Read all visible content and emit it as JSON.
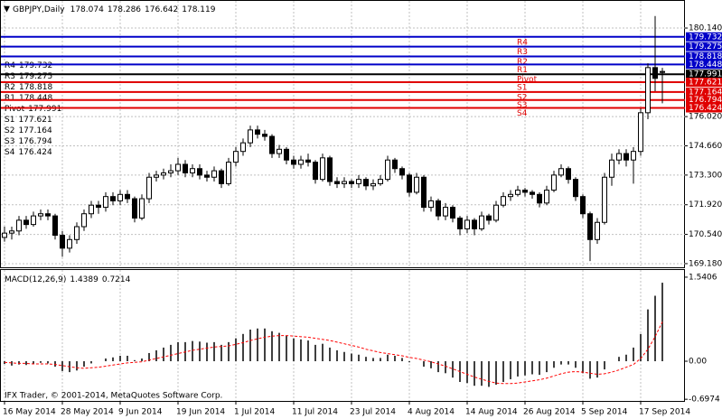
{
  "chart_data": [
    {
      "type": "candlestick",
      "title": "GBPJPY,Daily",
      "last_ohlc": [
        178.074,
        178.286,
        176.642,
        178.119
      ],
      "categories": [
        "16 May 2014",
        null,
        null,
        null,
        null,
        null,
        null,
        null,
        "28 May 2014",
        null,
        null,
        null,
        null,
        null,
        null,
        null,
        "9 Jun 2014",
        null,
        null,
        null,
        null,
        null,
        null,
        null,
        "19 Jun 2014",
        null,
        null,
        null,
        null,
        null,
        null,
        null,
        "1 Jul 2014",
        null,
        null,
        null,
        null,
        null,
        null,
        null,
        "11 Jul 2014",
        null,
        null,
        null,
        null,
        null,
        null,
        null,
        "23 Jul 2014",
        null,
        null,
        null,
        null,
        null,
        null,
        null,
        "4 Aug 2014",
        null,
        null,
        null,
        null,
        null,
        null,
        null,
        "14 Aug 2014",
        null,
        null,
        null,
        null,
        null,
        null,
        null,
        "26 Aug 2014",
        null,
        null,
        null,
        null,
        null,
        null,
        null,
        "5 Sep 2014",
        null,
        null,
        null,
        null,
        null,
        null,
        null,
        "17 Sep 2014",
        null,
        null,
        null
      ],
      "candles": [
        [
          170.4,
          170.9,
          170.2,
          170.6
        ],
        [
          170.6,
          170.9,
          170.3,
          170.7
        ],
        [
          170.7,
          171.4,
          170.5,
          171.2
        ],
        [
          171.2,
          171.4,
          170.8,
          171.0
        ],
        [
          171.0,
          171.6,
          170.9,
          171.4
        ],
        [
          171.4,
          171.7,
          171.2,
          171.5
        ],
        [
          171.5,
          171.7,
          171.2,
          171.4
        ],
        [
          171.4,
          171.5,
          170.3,
          170.5
        ],
        [
          170.5,
          170.7,
          169.5,
          169.9
        ],
        [
          169.9,
          170.5,
          169.7,
          170.3
        ],
        [
          170.3,
          171.1,
          170.1,
          170.9
        ],
        [
          170.9,
          171.7,
          170.7,
          171.5
        ],
        [
          171.5,
          172.1,
          171.3,
          171.9
        ],
        [
          171.9,
          172.1,
          171.5,
          171.8
        ],
        [
          171.8,
          172.5,
          171.6,
          172.3
        ],
        [
          172.3,
          172.5,
          171.9,
          172.1
        ],
        [
          172.1,
          172.6,
          171.9,
          172.4
        ],
        [
          172.4,
          172.6,
          172.0,
          172.2
        ],
        [
          172.2,
          172.3,
          171.1,
          171.3
        ],
        [
          171.3,
          172.4,
          171.2,
          172.2
        ],
        [
          172.2,
          173.4,
          172.0,
          173.2
        ],
        [
          173.2,
          173.5,
          173.0,
          173.3
        ],
        [
          173.3,
          173.6,
          173.1,
          173.4
        ],
        [
          173.4,
          173.8,
          173.2,
          173.5
        ],
        [
          173.5,
          174.1,
          173.3,
          173.8
        ],
        [
          173.8,
          174.0,
          173.2,
          173.4
        ],
        [
          173.4,
          173.8,
          173.2,
          173.6
        ],
        [
          173.6,
          173.8,
          173.1,
          173.3
        ],
        [
          173.3,
          173.5,
          173.0,
          173.2
        ],
        [
          173.2,
          173.7,
          173.0,
          173.5
        ],
        [
          173.5,
          173.6,
          172.7,
          172.9
        ],
        [
          172.9,
          174.1,
          172.8,
          173.9
        ],
        [
          173.9,
          174.6,
          173.7,
          174.4
        ],
        [
          174.4,
          175.0,
          174.2,
          174.8
        ],
        [
          174.8,
          175.6,
          174.6,
          175.4
        ],
        [
          175.4,
          175.6,
          175.0,
          175.2
        ],
        [
          175.2,
          175.4,
          174.9,
          175.1
        ],
        [
          175.1,
          175.2,
          174.1,
          174.3
        ],
        [
          174.3,
          174.7,
          174.1,
          174.5
        ],
        [
          174.5,
          174.6,
          173.8,
          174.0
        ],
        [
          174.0,
          174.2,
          173.6,
          173.8
        ],
        [
          173.8,
          174.2,
          173.6,
          174.0
        ],
        [
          174.0,
          174.3,
          173.7,
          173.9
        ],
        [
          173.9,
          174.0,
          172.9,
          173.1
        ],
        [
          173.1,
          174.3,
          173.0,
          174.1
        ],
        [
          174.1,
          174.2,
          172.8,
          173.0
        ],
        [
          173.0,
          173.2,
          172.7,
          172.9
        ],
        [
          172.9,
          173.2,
          172.7,
          173.0
        ],
        [
          173.0,
          173.1,
          172.7,
          172.9
        ],
        [
          172.9,
          173.3,
          172.7,
          173.1
        ],
        [
          173.1,
          173.2,
          172.6,
          172.8
        ],
        [
          172.8,
          173.1,
          172.6,
          172.9
        ],
        [
          172.9,
          173.3,
          172.8,
          173.1
        ],
        [
          173.1,
          174.2,
          173.0,
          174.0
        ],
        [
          174.0,
          174.1,
          173.4,
          173.6
        ],
        [
          173.6,
          173.7,
          173.1,
          173.3
        ],
        [
          173.3,
          173.4,
          172.3,
          172.5
        ],
        [
          172.5,
          173.4,
          172.4,
          173.2
        ],
        [
          173.2,
          173.3,
          171.6,
          171.8
        ],
        [
          171.8,
          172.3,
          171.6,
          172.1
        ],
        [
          172.1,
          172.2,
          171.2,
          171.4
        ],
        [
          171.4,
          172.0,
          171.2,
          171.8
        ],
        [
          171.8,
          171.9,
          171.1,
          171.3
        ],
        [
          171.3,
          171.4,
          170.5,
          170.8
        ],
        [
          170.8,
          171.4,
          170.6,
          171.2
        ],
        [
          171.2,
          171.3,
          170.5,
          170.8
        ],
        [
          170.8,
          171.6,
          170.7,
          171.4
        ],
        [
          171.4,
          171.5,
          171.0,
          171.2
        ],
        [
          171.2,
          172.1,
          171.1,
          171.9
        ],
        [
          171.9,
          172.5,
          171.8,
          172.3
        ],
        [
          172.3,
          172.6,
          172.1,
          172.4
        ],
        [
          172.4,
          172.8,
          172.3,
          172.6
        ],
        [
          172.6,
          172.7,
          172.3,
          172.5
        ],
        [
          172.5,
          172.6,
          172.2,
          172.4
        ],
        [
          172.4,
          172.5,
          171.8,
          172.0
        ],
        [
          172.0,
          172.8,
          171.9,
          172.6
        ],
        [
          172.6,
          173.5,
          172.5,
          173.3
        ],
        [
          173.3,
          173.8,
          173.2,
          173.6
        ],
        [
          173.6,
          173.7,
          172.9,
          173.1
        ],
        [
          173.1,
          173.2,
          172.1,
          172.3
        ],
        [
          172.3,
          172.4,
          171.3,
          171.5
        ],
        [
          171.5,
          171.6,
          169.3,
          170.3
        ],
        [
          170.3,
          171.3,
          170.1,
          171.1
        ],
        [
          171.1,
          173.4,
          171.0,
          173.2
        ],
        [
          173.2,
          174.3,
          172.8,
          174.0
        ],
        [
          174.0,
          174.5,
          173.8,
          174.3
        ],
        [
          174.3,
          174.5,
          173.7,
          174.0
        ],
        [
          174.0,
          174.6,
          172.9,
          174.4
        ],
        [
          174.4,
          176.4,
          174.2,
          176.2
        ],
        [
          176.2,
          178.5,
          175.9,
          178.3
        ],
        [
          178.3,
          180.7,
          177.2,
          177.8
        ],
        [
          178.074,
          178.286,
          176.642,
          178.119
        ]
      ],
      "up_color": "#ffffff",
      "down_color": "#000000",
      "ylim": [
        169.01,
        181.36
      ],
      "yticks": [
        {
          "value": 169.18,
          "label": "169.180"
        },
        {
          "value": 170.54,
          "label": "170.540"
        },
        {
          "value": 171.92,
          "label": "171.920"
        },
        {
          "value": 173.3,
          "label": "173.300"
        },
        {
          "value": 174.66,
          "label": "174.660"
        },
        {
          "value": 176.02,
          "label": "176.020"
        },
        {
          "value": 180.14,
          "label": "180.140"
        }
      ],
      "grid": true,
      "levels": [
        {
          "name": "R4",
          "value": 179.732,
          "color": "#0000c8"
        },
        {
          "name": "R3",
          "value": 179.275,
          "color": "#0000c8"
        },
        {
          "name": "R2",
          "value": 178.818,
          "color": "#0000c8"
        },
        {
          "name": "R1",
          "value": 178.448,
          "color": "#0000c8"
        },
        {
          "name": "Pivot",
          "value": 177.991,
          "color": "#000000"
        },
        {
          "name": "S1",
          "value": 177.621,
          "color": "#e00000"
        },
        {
          "name": "S2",
          "value": 177.164,
          "color": "#e00000"
        },
        {
          "name": "S3",
          "value": 176.794,
          "color": "#e00000"
        },
        {
          "name": "S4",
          "value": 176.424,
          "color": "#e00000"
        }
      ],
      "level_label_color": "#e00000"
    },
    {
      "type": "macd",
      "title": "MACD(12,26,9)",
      "last": [
        1.4389,
        0.7214
      ],
      "histogram": [
        -0.05,
        -0.08,
        -0.06,
        -0.07,
        -0.05,
        -0.03,
        -0.04,
        -0.1,
        -0.18,
        -0.2,
        -0.17,
        -0.1,
        -0.04,
        0.0,
        0.05,
        0.07,
        0.1,
        0.1,
        0.02,
        0.05,
        0.15,
        0.2,
        0.25,
        0.3,
        0.35,
        0.35,
        0.37,
        0.36,
        0.34,
        0.35,
        0.3,
        0.35,
        0.42,
        0.5,
        0.58,
        0.6,
        0.6,
        0.55,
        0.52,
        0.47,
        0.42,
        0.4,
        0.38,
        0.3,
        0.32,
        0.25,
        0.2,
        0.17,
        0.14,
        0.12,
        0.08,
        0.06,
        0.06,
        0.12,
        0.1,
        0.06,
        -0.02,
        0.0,
        -0.1,
        -0.13,
        -0.2,
        -0.22,
        -0.3,
        -0.38,
        -0.4,
        -0.45,
        -0.45,
        -0.47,
        -0.43,
        -0.38,
        -0.33,
        -0.28,
        -0.26,
        -0.24,
        -0.25,
        -0.2,
        -0.12,
        -0.06,
        -0.06,
        -0.12,
        -0.22,
        -0.32,
        -0.3,
        -0.15,
        0.0,
        0.08,
        0.12,
        0.25,
        0.5,
        0.95,
        1.2,
        1.4389
      ],
      "signal": [
        -0.02,
        -0.03,
        -0.04,
        -0.04,
        -0.05,
        -0.05,
        -0.05,
        -0.06,
        -0.08,
        -0.1,
        -0.12,
        -0.13,
        -0.12,
        -0.11,
        -0.09,
        -0.07,
        -0.05,
        -0.03,
        -0.02,
        -0.01,
        0.02,
        0.05,
        0.08,
        0.11,
        0.14,
        0.17,
        0.2,
        0.22,
        0.24,
        0.26,
        0.27,
        0.28,
        0.31,
        0.34,
        0.38,
        0.41,
        0.44,
        0.46,
        0.47,
        0.47,
        0.46,
        0.45,
        0.44,
        0.42,
        0.4,
        0.38,
        0.35,
        0.32,
        0.29,
        0.26,
        0.22,
        0.19,
        0.16,
        0.14,
        0.12,
        0.1,
        0.07,
        0.05,
        0.02,
        -0.01,
        -0.05,
        -0.09,
        -0.14,
        -0.19,
        -0.24,
        -0.29,
        -0.33,
        -0.37,
        -0.4,
        -0.41,
        -0.41,
        -0.4,
        -0.38,
        -0.36,
        -0.34,
        -0.31,
        -0.27,
        -0.23,
        -0.2,
        -0.19,
        -0.2,
        -0.22,
        -0.24,
        -0.23,
        -0.2,
        -0.16,
        -0.11,
        -0.06,
        0.05,
        0.22,
        0.45,
        0.7214
      ],
      "histogram_color": "#000000",
      "signal_color": "#ff0000",
      "ylim": [
        -0.728,
        1.672
      ],
      "yticks": [
        -0.6974,
        {
          "value": 0,
          "label": "0.00"
        },
        1.5406
      ]
    }
  ],
  "footer": "IFX Trader, © 2001-2014, MetaQuotes Software Corp."
}
